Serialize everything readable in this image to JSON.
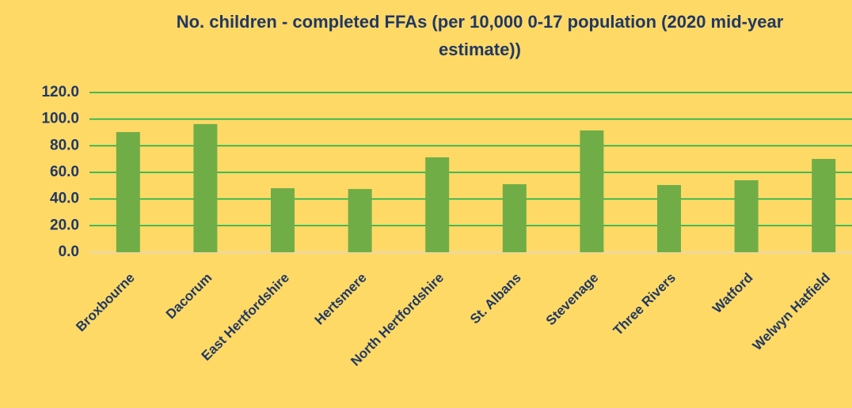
{
  "chart_data": {
    "type": "bar",
    "title": "No. children - completed FFAs (per 10,000 0-17 population (2020 mid-year estimate))",
    "categories": [
      "Broxbourne",
      "Dacorum",
      "East Hertfordshire",
      "Hertsmere",
      "North Hertfordshire",
      "St. Albans",
      "Stevenage",
      "Three Rivers",
      "Watford",
      "Welwyn Hatfield"
    ],
    "values": [
      90.3,
      96.3,
      48.1,
      47.5,
      71.3,
      51.1,
      91.5,
      50.5,
      54.1,
      70.1
    ],
    "color": "#70ad47",
    "ylim": [
      0,
      120
    ],
    "yticks": [
      {
        "value": 0,
        "label": "0.0"
      },
      {
        "value": 20,
        "label": "20.0"
      },
      {
        "value": 40,
        "label": "40.0"
      },
      {
        "value": 60,
        "label": "60.0"
      },
      {
        "value": 80,
        "label": "80.0"
      },
      {
        "value": 100,
        "label": "100.0"
      },
      {
        "value": 120,
        "label": "120.0"
      }
    ],
    "grid": true
  }
}
